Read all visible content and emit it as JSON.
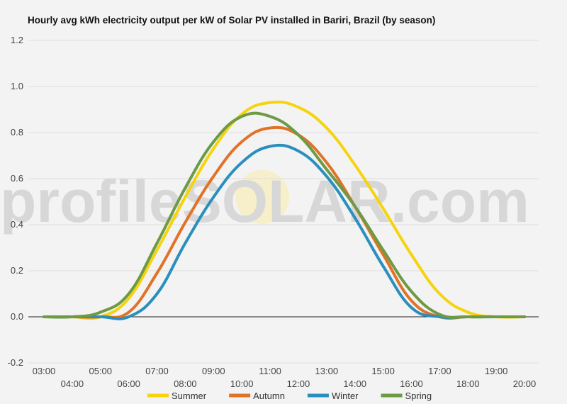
{
  "chart_data": {
    "type": "line",
    "title": "Hourly avg kWh electricity output per kW of Solar PV installed in Bariri, Brazil (by season)",
    "xlabel": "",
    "ylabel": "",
    "ylim": [
      -0.2,
      1.2
    ],
    "yticks": [
      "-0.2",
      "0.0",
      "0.2",
      "0.4",
      "0.6",
      "0.8",
      "1.0",
      "1.2"
    ],
    "x_tick_labels": [
      "03:00",
      "04:00",
      "05:00",
      "06:00",
      "07:00",
      "08:00",
      "09:00",
      "10:00",
      "11:00",
      "12:00",
      "13:00",
      "14:00",
      "15:00",
      "16:00",
      "17:00",
      "18:00",
      "19:00",
      "20:00"
    ],
    "x": [
      3,
      4,
      5,
      6,
      7,
      8,
      9,
      10,
      11,
      12,
      13,
      14,
      15,
      16,
      17,
      18,
      19,
      20
    ],
    "grid": true,
    "legend_position": "bottom",
    "series": [
      {
        "name": "Summer",
        "color": "#f5d40f",
        "values": [
          0.0,
          0.0,
          0.0,
          0.08,
          0.29,
          0.52,
          0.73,
          0.88,
          0.93,
          0.91,
          0.82,
          0.66,
          0.47,
          0.27,
          0.1,
          0.02,
          0.0,
          0.0
        ]
      },
      {
        "name": "Autumn",
        "color": "#e07328",
        "values": [
          0.0,
          0.0,
          0.0,
          0.02,
          0.19,
          0.41,
          0.61,
          0.76,
          0.82,
          0.79,
          0.67,
          0.48,
          0.27,
          0.07,
          0.0,
          0.0,
          0.0,
          0.0
        ]
      },
      {
        "name": "Winter",
        "color": "#2a8fbd",
        "values": [
          0.0,
          0.0,
          0.0,
          0.0,
          0.1,
          0.32,
          0.52,
          0.67,
          0.74,
          0.72,
          0.61,
          0.43,
          0.22,
          0.04,
          0.0,
          0.0,
          0.0,
          0.0
        ]
      },
      {
        "name": "Spring",
        "color": "#6d9a45",
        "values": [
          0.0,
          0.0,
          0.02,
          0.1,
          0.32,
          0.56,
          0.76,
          0.87,
          0.87,
          0.79,
          0.64,
          0.48,
          0.29,
          0.11,
          0.01,
          0.0,
          0.0,
          0.0
        ]
      }
    ]
  },
  "watermark": {
    "left": "profile",
    "middle": "SO",
    "right": "LAR.com"
  }
}
